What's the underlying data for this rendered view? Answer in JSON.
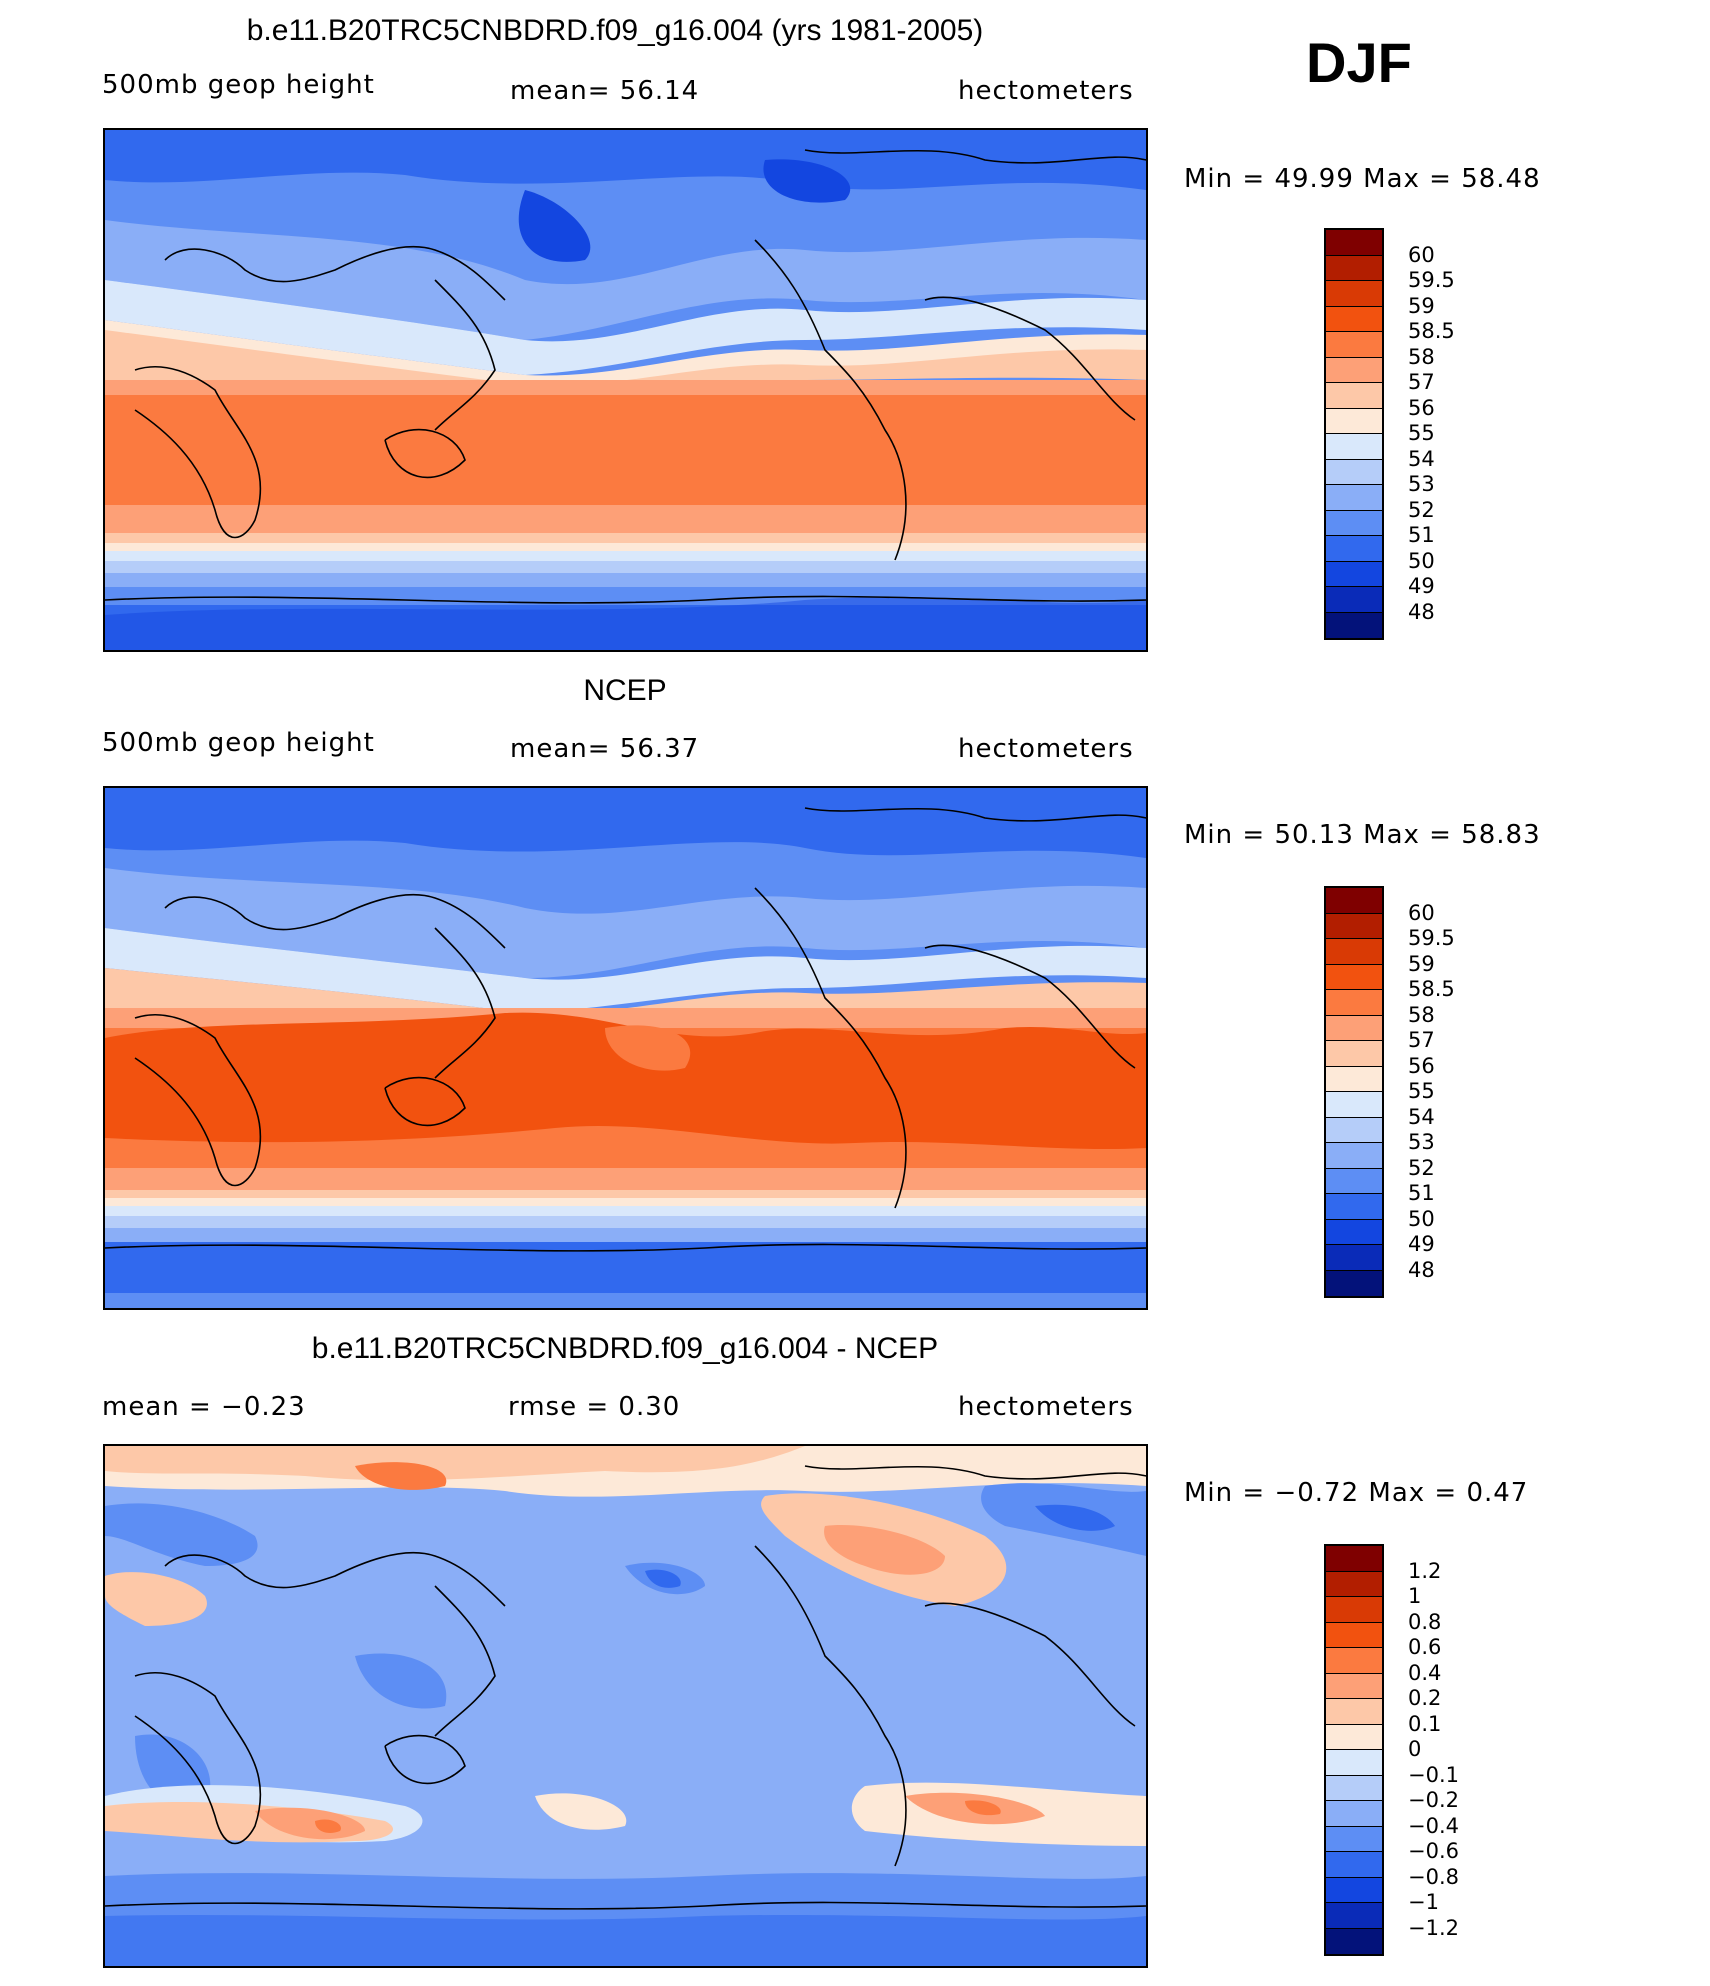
{
  "season": "DJF",
  "panels": [
    {
      "id": "model",
      "title": "b.e11.B20TRC5CNBDRD.f09_g16.004 (yrs 1981-2005)",
      "left_label": "500mb geop height",
      "center_label": "mean=   56.14",
      "right_label": "hectometers",
      "minmax": "Min =   49.99  Max =   58.48",
      "palette": "abs"
    },
    {
      "id": "obs",
      "title": "NCEP",
      "left_label": "500mb geop height",
      "center_label": "mean=   56.37",
      "right_label": "hectometers",
      "minmax": "Min =   50.13  Max =   58.83",
      "palette": "abs"
    },
    {
      "id": "diff",
      "title": "b.e11.B20TRC5CNBDRD.f09_g16.004 - NCEP",
      "left_label": "mean =    −0.23",
      "center_label": "rmse =    0.30",
      "right_label": "hectometers",
      "minmax": "Min =  −0.72  Max =    0.47",
      "palette": "diff"
    }
  ],
  "colorbars": {
    "abs": {
      "labels": [
        "60",
        "59.5",
        "59",
        "58.5",
        "58",
        "57",
        "56",
        "55",
        "54",
        "53",
        "52",
        "51",
        "50",
        "49",
        "48"
      ],
      "colors": [
        "#7f0000",
        "#b21e00",
        "#d93a05",
        "#f2520f",
        "#fb7a40",
        "#fda077",
        "#fdc8a8",
        "#fde9d8",
        "#d9e8fb",
        "#b5cdf9",
        "#8aaef7",
        "#5d8ef4",
        "#3169ee",
        "#1346e0",
        "#0a2bb8",
        "#03127a"
      ]
    },
    "diff": {
      "labels": [
        "1.2",
        "1",
        "0.8",
        "0.6",
        "0.4",
        "0.2",
        "0.1",
        "0",
        "−0.1",
        "−0.2",
        "−0.4",
        "−0.6",
        "−0.8",
        "−1",
        "−1.2"
      ],
      "colors": [
        "#7f0000",
        "#b21e00",
        "#d93a05",
        "#f2520f",
        "#fb7a40",
        "#fda077",
        "#fdc8a8",
        "#fde9d8",
        "#d9e8fb",
        "#b5cdf9",
        "#8aaef7",
        "#5d8ef4",
        "#3169ee",
        "#1346e0",
        "#0a2bb8",
        "#03127a"
      ]
    }
  }
}
